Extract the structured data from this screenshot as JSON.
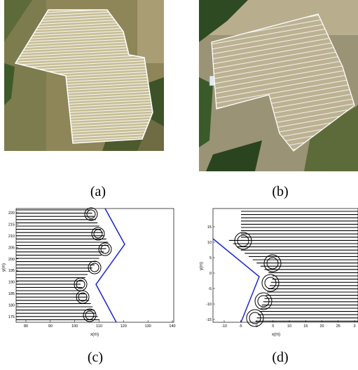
{
  "captions": {
    "a": "(a)",
    "b": "(b)",
    "c": "(c)",
    "d": "(d)"
  },
  "plots": {
    "c": {
      "xlabel": "x(m)",
      "ylabel": "y(m)",
      "xticks": [
        "80",
        "90",
        "100",
        "110",
        "120",
        "130",
        "140"
      ],
      "yticks": [
        "220",
        "215",
        "210",
        "205",
        "200",
        "195",
        "190",
        "185",
        "180",
        "175"
      ]
    },
    "d": {
      "xlabel": "x(m)",
      "ylabel": "y(m)",
      "xticks": [
        "-10",
        "-5",
        "0",
        "5",
        "10",
        "15",
        "20",
        "25",
        "3"
      ],
      "yticks": [
        "15",
        "10",
        "5",
        "0",
        "-5",
        "-10",
        "-15"
      ]
    }
  },
  "colors": {
    "boundary": "#1b25d6",
    "path": "#000000",
    "field_a": "#9a8f5e",
    "field_b": "#8d8a72"
  }
}
